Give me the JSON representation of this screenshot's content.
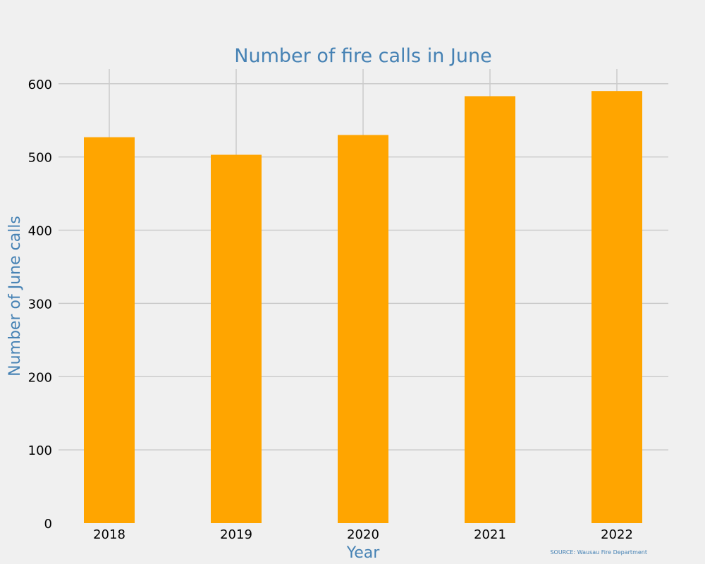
{
  "chart_data": {
    "type": "bar",
    "title": "Number of fire calls in June",
    "xlabel": "Year",
    "ylabel": "Number of June calls",
    "categories": [
      "2018",
      "2019",
      "2020",
      "2021",
      "2022"
    ],
    "values": [
      527,
      503,
      530,
      583,
      590
    ],
    "ylim": [
      0,
      620
    ],
    "yticks": [
      0,
      100,
      200,
      300,
      400,
      500,
      600
    ],
    "grid": true,
    "bar_color": "#ffa500",
    "text_color": "#4682b4",
    "background": "#f0f0f0",
    "source": "SOURCE: Wausau Fire Department"
  }
}
